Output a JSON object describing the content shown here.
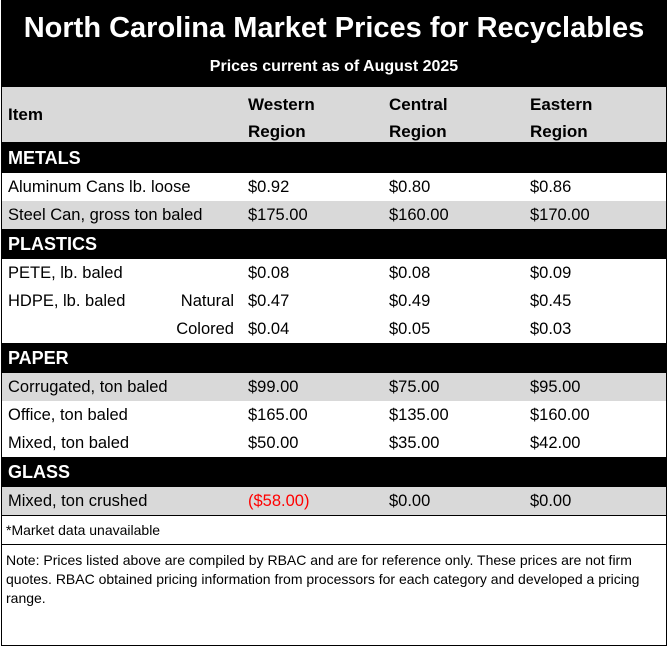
{
  "title": "North Carolina Market Prices for Recyclables",
  "subtitle": "Prices current as of August 2025",
  "header": {
    "item": "Item",
    "western": [
      "Western",
      "Region"
    ],
    "central": [
      "Central",
      "Region"
    ],
    "eastern": [
      "Eastern",
      "Region"
    ]
  },
  "sections": [
    {
      "name": "METALS",
      "rows": [
        {
          "item": "Aluminum Cans lb. loose",
          "sub": "",
          "western": "$0.92",
          "central": "$0.80",
          "eastern": "$0.86",
          "shade": false
        },
        {
          "item": "Steel Can, gross ton baled",
          "sub": "",
          "western": "$175.00",
          "central": "$160.00",
          "eastern": "$170.00",
          "shade": true
        }
      ]
    },
    {
      "name": "PLASTICS",
      "rows": [
        {
          "item": "PETE, lb. baled",
          "sub": "",
          "western": "$0.08",
          "central": "$0.08",
          "eastern": "$0.09",
          "shade": false
        },
        {
          "item": "HDPE, lb. baled",
          "sub": "Natural",
          "western": "$0.47",
          "central": "$0.49",
          "eastern": "$0.45",
          "shade": false
        },
        {
          "item": "",
          "sub": "Colored",
          "western": "$0.04",
          "central": "$0.05",
          "eastern": "$0.03",
          "shade": false
        }
      ]
    },
    {
      "name": "PAPER",
      "rows": [
        {
          "item": "Corrugated, ton baled",
          "sub": "",
          "western": "$99.00",
          "central": "$75.00",
          "eastern": "$95.00",
          "shade": true
        },
        {
          "item": "Office, ton baled",
          "sub": "",
          "western": "$165.00",
          "central": "$135.00",
          "eastern": "$160.00",
          "shade": false
        },
        {
          "item": "Mixed, ton baled",
          "sub": "",
          "western": "$50.00",
          "central": "$35.00",
          "eastern": "$42.00",
          "shade": false
        }
      ]
    },
    {
      "name": "GLASS",
      "rows": [
        {
          "item": "Mixed, ton crushed",
          "sub": "",
          "western": "($58.00)",
          "central": "$0.00",
          "eastern": "$0.00",
          "shade": true,
          "western_negative": true
        }
      ]
    }
  ],
  "notes": {
    "unavailable": "*Market data unavailable",
    "disclaimer": "Note: Prices listed above are compiled by RBAC and are for reference only. These prices are not firm quotes. RBAC obtained pricing information from processors for each category and developed a pricing range."
  },
  "colors": {
    "header_bg": "#000000",
    "row_shade": "#d9d9d9",
    "negative": "#ff0000"
  }
}
